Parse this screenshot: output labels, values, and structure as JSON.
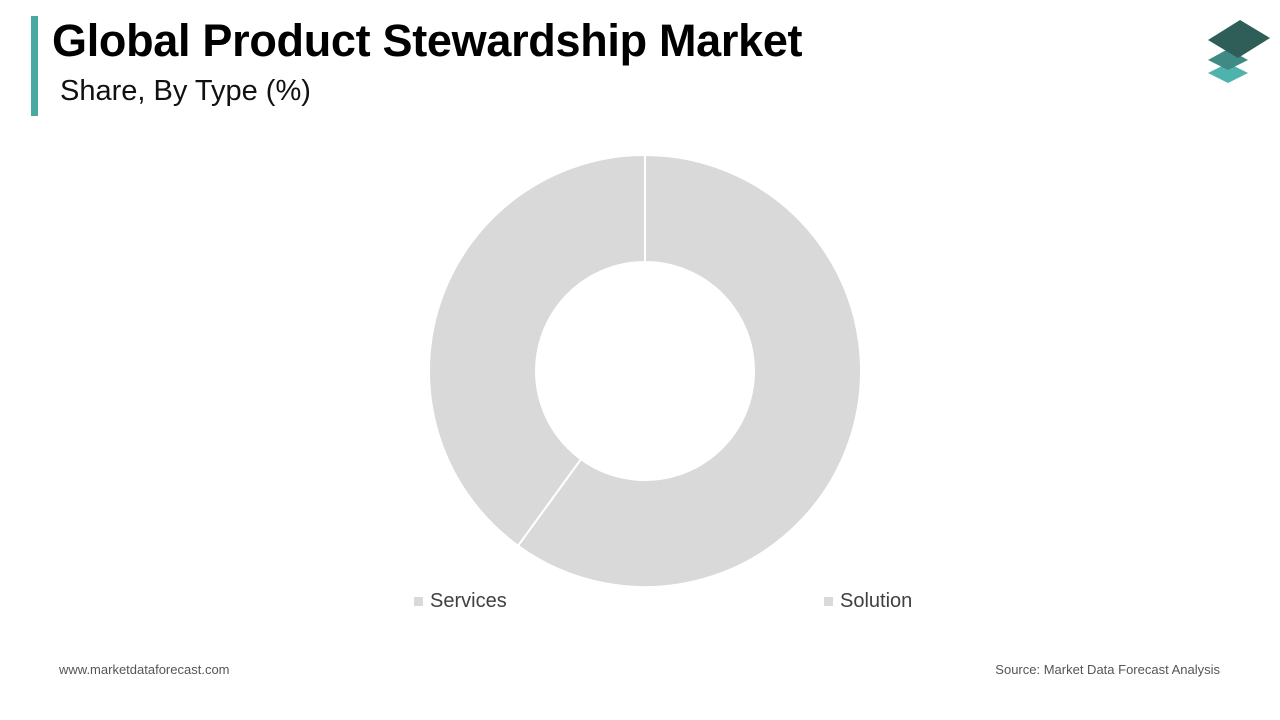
{
  "header": {
    "title": "Global Product Stewardship Market",
    "subtitle": "Share, By Type (%)"
  },
  "logo": {
    "icon": "stacked-layers-logo-icon",
    "colors": [
      "#2f5d58",
      "#3f8a84",
      "#4fb3ad"
    ]
  },
  "chart_data": {
    "type": "pie",
    "variant": "donut",
    "title": "",
    "categories": [
      "Services",
      "Solution"
    ],
    "values": [
      40,
      60
    ],
    "unit": "%",
    "colors": [
      "#d9d9d9",
      "#d9d9d9"
    ],
    "legend_position": "bottom"
  },
  "footer": {
    "website": "www.marketdataforecast.com",
    "source": "Source: Market Data Forecast Analysis"
  }
}
